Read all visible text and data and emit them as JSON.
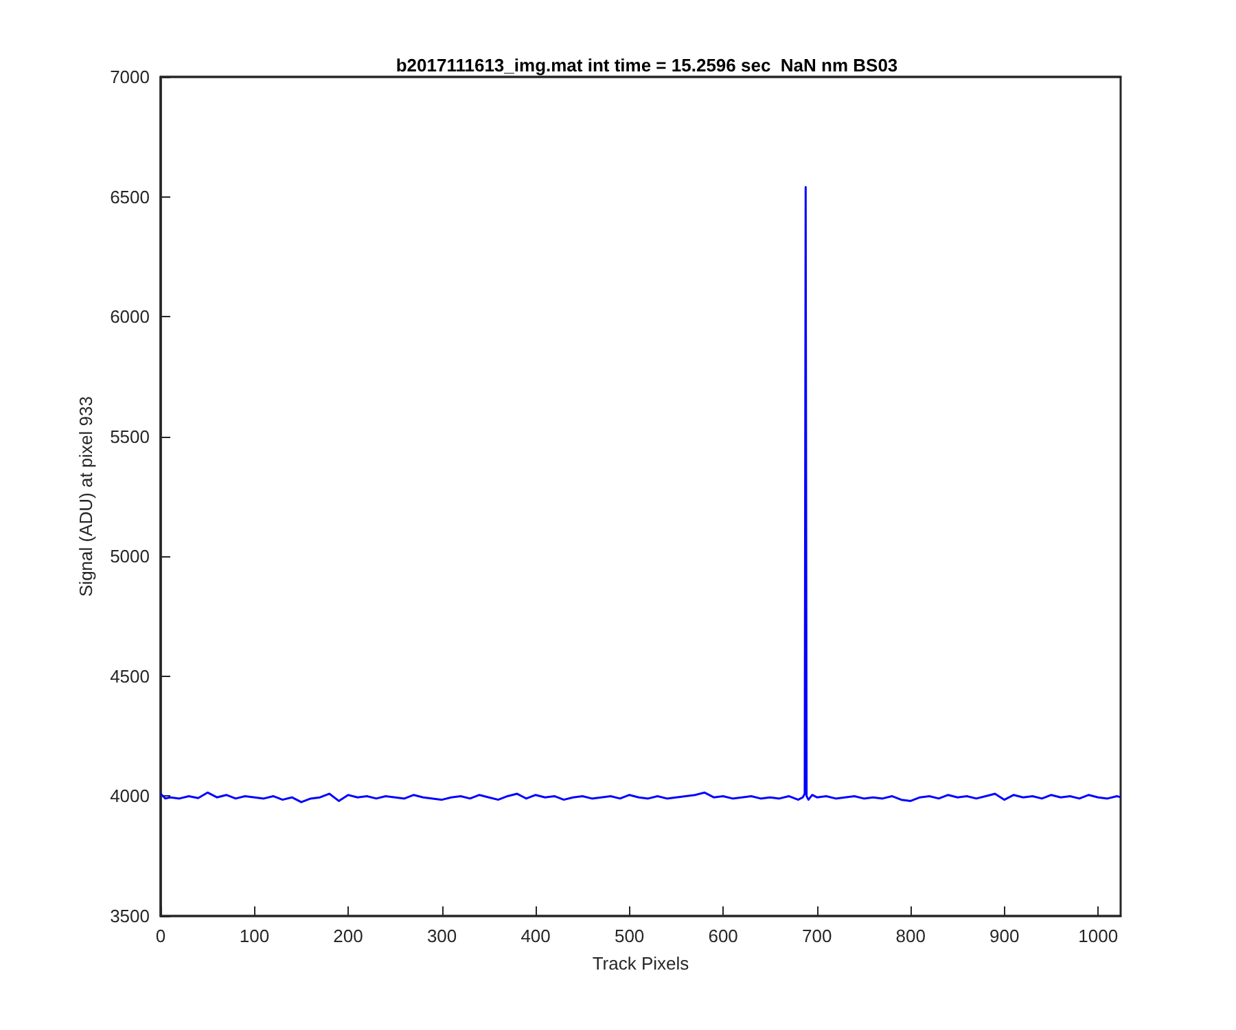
{
  "chart_data": {
    "type": "line",
    "title": "b2017111613_img.mat int time = 15.2596 sec  NaN nm BS03",
    "xlabel": "Track Pixels",
    "ylabel": "Signal (ADU) at pixel 933",
    "xlim": [
      0,
      1024
    ],
    "xticks": [
      0,
      100,
      200,
      300,
      400,
      500,
      600,
      700,
      800,
      900,
      1000
    ],
    "ylim": [
      3500,
      7000
    ],
    "yticks": [
      3500,
      4000,
      4500,
      5000,
      5500,
      6000,
      6500,
      7000
    ],
    "grid": false,
    "marker": "none",
    "line_style": "solid",
    "series": [
      {
        "color": "#0000ff",
        "x": [
          0,
          5,
          10,
          20,
          30,
          40,
          50,
          60,
          70,
          80,
          90,
          100,
          110,
          120,
          130,
          140,
          150,
          160,
          170,
          180,
          190,
          200,
          210,
          220,
          230,
          240,
          250,
          260,
          270,
          280,
          290,
          300,
          310,
          320,
          330,
          340,
          350,
          360,
          370,
          380,
          390,
          400,
          410,
          420,
          430,
          440,
          450,
          460,
          470,
          480,
          490,
          500,
          510,
          520,
          530,
          540,
          550,
          560,
          570,
          580,
          590,
          600,
          610,
          620,
          630,
          640,
          650,
          660,
          670,
          680,
          685,
          687,
          688,
          689,
          691,
          695,
          700,
          710,
          720,
          730,
          740,
          750,
          760,
          770,
          780,
          790,
          800,
          810,
          820,
          830,
          840,
          850,
          860,
          870,
          880,
          890,
          900,
          910,
          920,
          930,
          940,
          950,
          960,
          970,
          980,
          990,
          1000,
          1010,
          1020,
          1024
        ],
        "values": [
          4010,
          3990,
          3995,
          3990,
          4000,
          3992,
          4015,
          3995,
          4005,
          3990,
          4000,
          3995,
          3990,
          4000,
          3985,
          3995,
          3975,
          3990,
          3995,
          4010,
          3980,
          4005,
          3995,
          4000,
          3990,
          4000,
          3995,
          3990,
          4005,
          3995,
          3990,
          3985,
          3995,
          4000,
          3990,
          4005,
          3995,
          3985,
          4000,
          4010,
          3990,
          4005,
          3995,
          4000,
          3985,
          3995,
          4000,
          3990,
          3995,
          4000,
          3990,
          4005,
          3995,
          3990,
          4000,
          3990,
          3995,
          4000,
          4005,
          4015,
          3995,
          4000,
          3990,
          3995,
          4000,
          3990,
          3995,
          3990,
          4000,
          3985,
          3995,
          4010,
          6540,
          4000,
          3985,
          4005,
          3995,
          4000,
          3990,
          3995,
          4000,
          3990,
          3995,
          3990,
          4000,
          3985,
          3980,
          3995,
          4000,
          3990,
          4005,
          3995,
          4000,
          3990,
          4000,
          4010,
          3985,
          4005,
          3995,
          4000,
          3990,
          4005,
          3995,
          4000,
          3990,
          4005,
          3995,
          3990,
          4000,
          3995
        ]
      }
    ]
  }
}
